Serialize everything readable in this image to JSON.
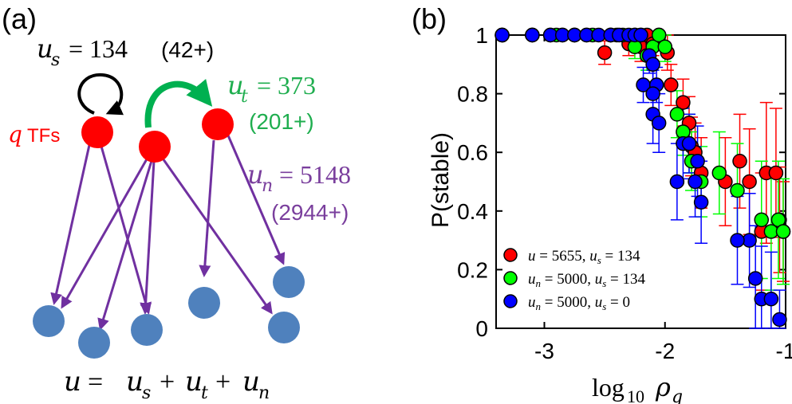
{
  "panel_a": {
    "panel_label": "(a)",
    "us": {
      "var": "u",
      "sub": "s",
      "value": "= 134",
      "paren": "(42+)",
      "color": "#000000"
    },
    "ut": {
      "var": "u",
      "sub": "t",
      "value": "= 373",
      "paren": "(201+)",
      "color": "#1fae4f"
    },
    "un": {
      "var": "u",
      "sub": "n",
      "value": "= 5148",
      "paren": "(2944+)",
      "color": "#7a3f9d"
    },
    "tf_label": {
      "q": "q",
      "text": "TFs",
      "color": "#ff0000"
    },
    "equation": {
      "u": "u",
      "eq": "=",
      "s": "s",
      "t": "t",
      "n": "n",
      "plus": "+"
    },
    "colors": {
      "tf": "#ff0000",
      "target": "#4f81bd",
      "arrow": "#7030a0",
      "green_arrow": "#00b050",
      "self_loop": "#000000"
    }
  },
  "chart_data": {
    "type": "scatter",
    "panel_label": "(b)",
    "ylabel": "P(stable)",
    "xlabel": {
      "base": "log",
      "sub": "10",
      "rho": "ρ",
      "rho_sub": "q"
    },
    "xlim": [
      -3.4,
      -1.0
    ],
    "ylim": [
      0,
      1
    ],
    "xticks": [
      -3,
      -2,
      -1
    ],
    "xtick_labels": [
      "-3",
      "-2",
      "-1"
    ],
    "yticks": [
      0,
      0.2,
      0.4,
      0.6,
      0.8,
      1
    ],
    "ytick_labels": [
      "0",
      "0.2",
      "0.4",
      "0.6",
      "0.8",
      "1"
    ],
    "grid": false,
    "legend_position": "bottom-left",
    "series": [
      {
        "name": "red",
        "legend": {
          "lhs": "u",
          "lhs_sub": "",
          "lhs_val": "= 5655,",
          "rhs": "u",
          "rhs_sub": "s",
          "rhs_val": "= 134"
        },
        "color": "#ff0000",
        "points": [
          [
            -3.35,
            1,
            0
          ],
          [
            -3.1,
            1,
            0
          ],
          [
            -2.95,
            1,
            0
          ],
          [
            -2.85,
            1,
            0
          ],
          [
            -2.75,
            1,
            0
          ],
          [
            -2.65,
            1,
            0
          ],
          [
            -2.5,
            0.94,
            0.04
          ],
          [
            -2.45,
            1,
            0
          ],
          [
            -2.4,
            1,
            0
          ],
          [
            -2.3,
            0.97,
            0.04
          ],
          [
            -2.25,
            1,
            0
          ],
          [
            -2.2,
            0.96,
            0.05
          ],
          [
            -2.15,
            1,
            0
          ],
          [
            -2.1,
            0.97,
            0.04
          ],
          [
            -2.05,
            1,
            0
          ],
          [
            -1.98,
            0.94,
            0.06
          ],
          [
            -1.95,
            0.83,
            0.07
          ],
          [
            -1.85,
            0.77,
            0.08
          ],
          [
            -1.8,
            0.7,
            0.09
          ],
          [
            -1.78,
            0.62,
            0.1
          ],
          [
            -1.75,
            0.6,
            0.1
          ],
          [
            -1.7,
            0.53,
            0.12
          ],
          [
            -1.5,
            0.5,
            0.15
          ],
          [
            -1.38,
            0.57,
            0.16
          ],
          [
            -1.3,
            0.5,
            0.18
          ],
          [
            -1.2,
            0.33,
            0.2
          ],
          [
            -1.16,
            0.53,
            0.24
          ],
          [
            -1.08,
            0.53,
            0.22
          ],
          [
            -1.05,
            0.37,
            0.18
          ],
          [
            -1.02,
            0.33,
            0.17
          ]
        ]
      },
      {
        "name": "green",
        "legend": {
          "lhs": "u",
          "lhs_sub": "n",
          "lhs_val": "= 5000,",
          "rhs": "u",
          "rhs_sub": "s",
          "rhs_val": "= 134"
        },
        "color": "#00ff00",
        "points": [
          [
            -3.35,
            1,
            0
          ],
          [
            -3.1,
            1,
            0
          ],
          [
            -2.9,
            1,
            0
          ],
          [
            -2.75,
            1,
            0
          ],
          [
            -2.6,
            1,
            0
          ],
          [
            -2.45,
            1,
            0
          ],
          [
            -2.35,
            1,
            0
          ],
          [
            -2.25,
            0.96,
            0.04
          ],
          [
            -2.2,
            1,
            0
          ],
          [
            -2.15,
            0.93,
            0.05
          ],
          [
            -2.1,
            0.96,
            0.05
          ],
          [
            -2.05,
            1,
            0
          ],
          [
            -2.0,
            0.96,
            0.05
          ],
          [
            -1.9,
            0.73,
            0.08
          ],
          [
            -1.85,
            0.67,
            0.08
          ],
          [
            -1.8,
            0.63,
            0.1
          ],
          [
            -1.78,
            0.57,
            0.1
          ],
          [
            -1.7,
            0.5,
            0.12
          ],
          [
            -1.55,
            0.53,
            0.14
          ],
          [
            -1.4,
            0.47,
            0.16
          ],
          [
            -1.2,
            0.37,
            0.2
          ],
          [
            -1.12,
            0.33,
            0.2
          ],
          [
            -1.06,
            0.37,
            0.2
          ],
          [
            -1.02,
            0.33,
            0.18
          ]
        ]
      },
      {
        "name": "blue",
        "legend": {
          "lhs": "u",
          "lhs_sub": "n",
          "lhs_val": "= 5000,",
          "rhs": "u",
          "rhs_sub": "s",
          "rhs_val": "= 0"
        },
        "color": "#0000ff",
        "points": [
          [
            -3.35,
            1,
            0
          ],
          [
            -3.1,
            1,
            0
          ],
          [
            -2.95,
            1,
            0
          ],
          [
            -2.85,
            1,
            0
          ],
          [
            -2.75,
            1,
            0
          ],
          [
            -2.65,
            1,
            0
          ],
          [
            -2.55,
            1,
            0
          ],
          [
            -2.45,
            1,
            0
          ],
          [
            -2.38,
            1,
            0
          ],
          [
            -2.3,
            1,
            0
          ],
          [
            -2.25,
            1,
            0
          ],
          [
            -2.2,
            1,
            0
          ],
          [
            -2.18,
            0.83,
            0.06
          ],
          [
            -2.13,
            0.93,
            0.06
          ],
          [
            -2.1,
            0.9,
            0.06
          ],
          [
            -2.07,
            0.83,
            0.06
          ],
          [
            -2.1,
            0.8,
            0.08
          ],
          [
            -2.1,
            0.73,
            0.1
          ],
          [
            -2.05,
            0.7,
            0.1
          ],
          [
            -1.85,
            0.63,
            0.12
          ],
          [
            -1.8,
            0.63,
            0.1
          ],
          [
            -1.73,
            0.57,
            0.12
          ],
          [
            -1.75,
            0.5,
            0.12
          ],
          [
            -1.9,
            0.5,
            0.13
          ],
          [
            -1.7,
            0.43,
            0.14
          ],
          [
            -1.3,
            0.3,
            0.16
          ],
          [
            -1.25,
            0.17,
            0.18
          ],
          [
            -1.2,
            0.1,
            0.18
          ],
          [
            -1.12,
            0.1,
            0.16
          ],
          [
            -1.05,
            0.03,
            0.1
          ],
          [
            -1.4,
            0.3,
            0.15
          ]
        ]
      }
    ]
  }
}
